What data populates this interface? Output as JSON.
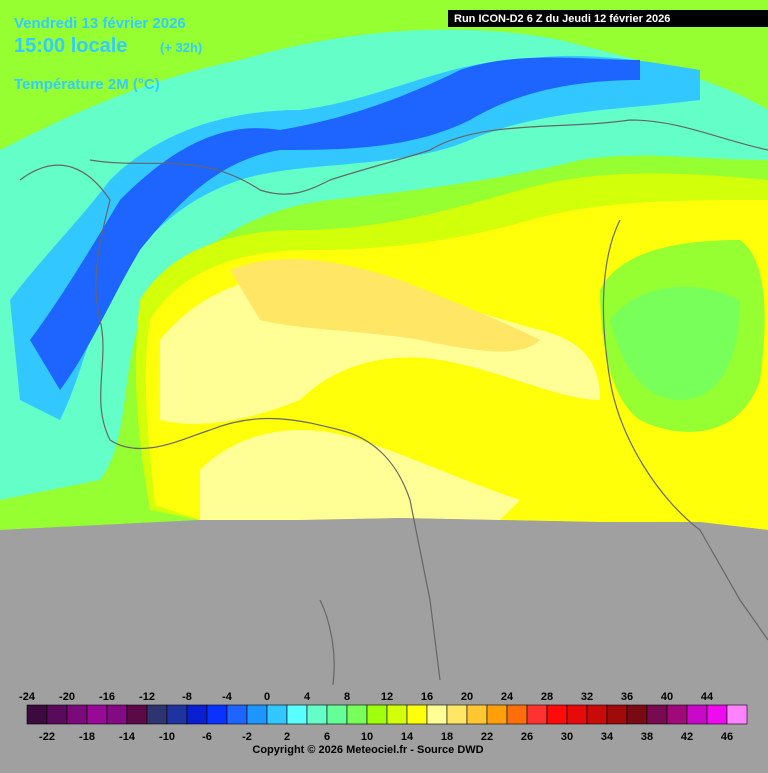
{
  "header": {
    "date": "Vendredi 13 février 2026",
    "time": "15:00 locale",
    "offset": "(+ 32h)",
    "variable": "Température 2M (°C)"
  },
  "run": "Run ICON-D2 6 Z du Jeudi 12 février 2026",
  "legend": {
    "values": [
      -24,
      -22,
      -20,
      -18,
      -16,
      -14,
      -12,
      -10,
      -8,
      -6,
      -4,
      -2,
      0,
      2,
      4,
      6,
      8,
      10,
      12,
      14,
      16,
      18,
      20,
      22,
      24,
      26,
      28,
      30,
      32,
      34,
      36,
      38,
      40,
      42,
      44,
      46
    ],
    "colors": [
      "#3c0a3c",
      "#5a0a5a",
      "#7a0a7a",
      "#960a96",
      "#820a82",
      "#5a0a46",
      "#2e3470",
      "#1e32a0",
      "#0a1ed2",
      "#0a32ff",
      "#1e64ff",
      "#1e96ff",
      "#32c8ff",
      "#5affff",
      "#64ffc8",
      "#64ff96",
      "#78ff5a",
      "#a0ff0a",
      "#d2ff0a",
      "#ffff0a",
      "#ffff96",
      "#ffe664",
      "#ffc832",
      "#ffa00a",
      "#ff6e0a",
      "#ff3232",
      "#ff0a0a",
      "#e60a0a",
      "#c80a0a",
      "#a00a0a",
      "#780a14",
      "#780a50",
      "#a00a78",
      "#c80ac8",
      "#f00af0",
      "#ff82ff"
    ]
  },
  "copyright": "Copyright © 2026 Meteociel.fr - Source DWD"
}
